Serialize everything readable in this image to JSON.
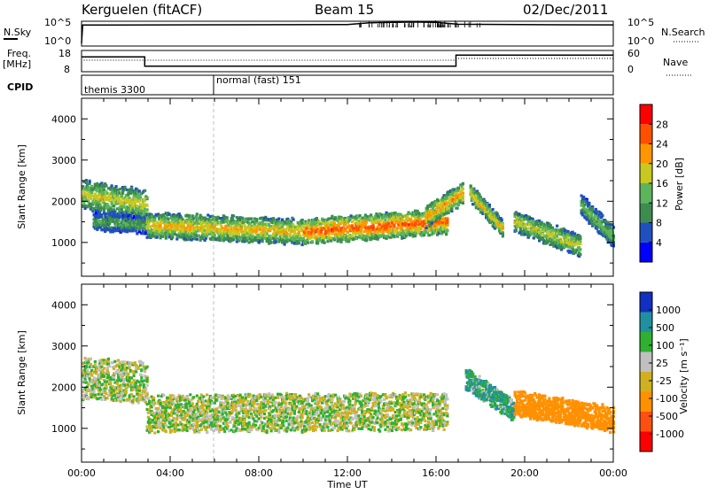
{
  "header": {
    "station": "Kerguelen (fitACF)",
    "beam": "Beam 15",
    "date": "02/Dec/2011"
  },
  "nsky_panel": {
    "left_label": "N.Sky",
    "right_label": "N.Search",
    "left_ticks": [
      "10^5",
      "10^0"
    ],
    "right_ticks": [
      "10^5",
      "10^0"
    ]
  },
  "freq_panel": {
    "left_label_1": "Freq.",
    "left_label_2": "[MHz]",
    "right_label": "Nave",
    "left_ticks": [
      "18",
      "8"
    ],
    "right_ticks": [
      "60",
      "0"
    ]
  },
  "cpid_panel": {
    "label": "CPID",
    "modes": [
      "themis 3300",
      "normal (fast) 151"
    ]
  },
  "power_panel": {
    "ylabel": "Slant Range [km]",
    "yticks": [
      "4000",
      "3000",
      "2000",
      "1000"
    ],
    "colorbar_label": "Power [dB]",
    "colorbar_ticks": [
      "28",
      "24",
      "20",
      "16",
      "12",
      "8",
      "4"
    ]
  },
  "velocity_panel": {
    "ylabel": "Slant Range [km]",
    "yticks": [
      "4000",
      "3000",
      "2000",
      "1000"
    ],
    "colorbar_label": "Velocity [m s⁻¹]",
    "colorbar_ticks": [
      "1000",
      "500",
      "100",
      "25",
      "-25",
      "-100",
      "-500",
      "-1000"
    ]
  },
  "xaxis": {
    "label": "Time UT",
    "ticks": [
      "00:00",
      "04:00",
      "08:00",
      "12:00",
      "16:00",
      "20:00",
      "00:00"
    ]
  },
  "colors": {
    "power_scale": [
      "#0000ff",
      "#2050c0",
      "#3c8c50",
      "#5cb45c",
      "#c8c820",
      "#ff9600",
      "#ff5000",
      "#ff0000"
    ],
    "velocity_scale": [
      "#1030c0",
      "#2090a0",
      "#30b030",
      "#c0c0c0",
      "#d0b020",
      "#ff9000",
      "#ff5010",
      "#ff0000"
    ]
  },
  "chart_data": [
    {
      "type": "line",
      "title": "N.Sky / N.Search",
      "x_unit": "hours UT",
      "xlim": [
        0,
        24
      ],
      "series": [
        {
          "name": "N.Sky",
          "x": [
            0,
            0.05,
            6,
            12,
            13,
            15,
            16,
            17,
            22,
            24
          ],
          "values": [
            1,
            50000,
            60000,
            70000,
            200000,
            300000,
            250000,
            80000,
            60000,
            55000
          ]
        }
      ],
      "yscale": "log"
    },
    {
      "type": "line",
      "title": "Freq / Nave",
      "x_unit": "hours UT",
      "xlim": [
        0,
        24
      ],
      "ylim": [
        8,
        18
      ],
      "series": [
        {
          "name": "Freq",
          "x": [
            0,
            2.85,
            2.85,
            16.9,
            16.9,
            24
          ],
          "values": [
            15.5,
            15.5,
            10.5,
            10.5,
            16.5,
            16.5
          ]
        }
      ]
    },
    {
      "type": "heatmap",
      "title": "Power",
      "x_unit": "hours UT",
      "y_unit": "km",
      "xlim": [
        0,
        24
      ],
      "ylim": [
        180,
        4500
      ],
      "zlim": [
        0,
        30
      ],
      "bands": [
        {
          "t0": 0.0,
          "t1": 2.9,
          "r0": 2150,
          "r1": 1900,
          "width": 350,
          "peak": 18
        },
        {
          "t0": 0.5,
          "t1": 2.9,
          "r0": 1500,
          "r1": 1400,
          "width": 200,
          "peak": 12
        },
        {
          "t0": 2.9,
          "t1": 10.0,
          "r0": 1400,
          "r1": 1250,
          "width": 300,
          "peak": 20
        },
        {
          "t0": 10.0,
          "t1": 16.5,
          "r0": 1250,
          "r1": 1500,
          "width": 300,
          "peak": 25
        },
        {
          "t0": 15.5,
          "t1": 17.2,
          "r0": 1600,
          "r1": 2200,
          "width": 250,
          "peak": 22
        },
        {
          "t0": 17.5,
          "t1": 19.0,
          "r0": 2200,
          "r1": 1300,
          "width": 200,
          "peak": 20
        },
        {
          "t0": 19.5,
          "t1": 22.5,
          "r0": 1500,
          "r1": 900,
          "width": 250,
          "peak": 18
        },
        {
          "t0": 22.5,
          "t1": 24.0,
          "r0": 1900,
          "r1": 1100,
          "width": 250,
          "peak": 14
        }
      ]
    },
    {
      "type": "heatmap",
      "title": "Velocity",
      "x_unit": "hours UT",
      "y_unit": "km",
      "xlim": [
        0,
        24
      ],
      "ylim": [
        180,
        4500
      ],
      "zlim": [
        -1000,
        1000
      ],
      "bands": [
        {
          "t0": 0.0,
          "t1": 2.9,
          "r0": 2200,
          "r1": 2100,
          "width": 500,
          "v": 0
        },
        {
          "t0": 2.9,
          "t1": 16.5,
          "r0": 1350,
          "r1": 1400,
          "width": 450,
          "v": 0
        },
        {
          "t0": 17.3,
          "t1": 19.5,
          "r0": 2200,
          "r1": 1400,
          "width": 250,
          "v": 100
        },
        {
          "t0": 19.5,
          "t1": 24.0,
          "r0": 1600,
          "r1": 1200,
          "width": 300,
          "v": -300
        }
      ]
    }
  ]
}
